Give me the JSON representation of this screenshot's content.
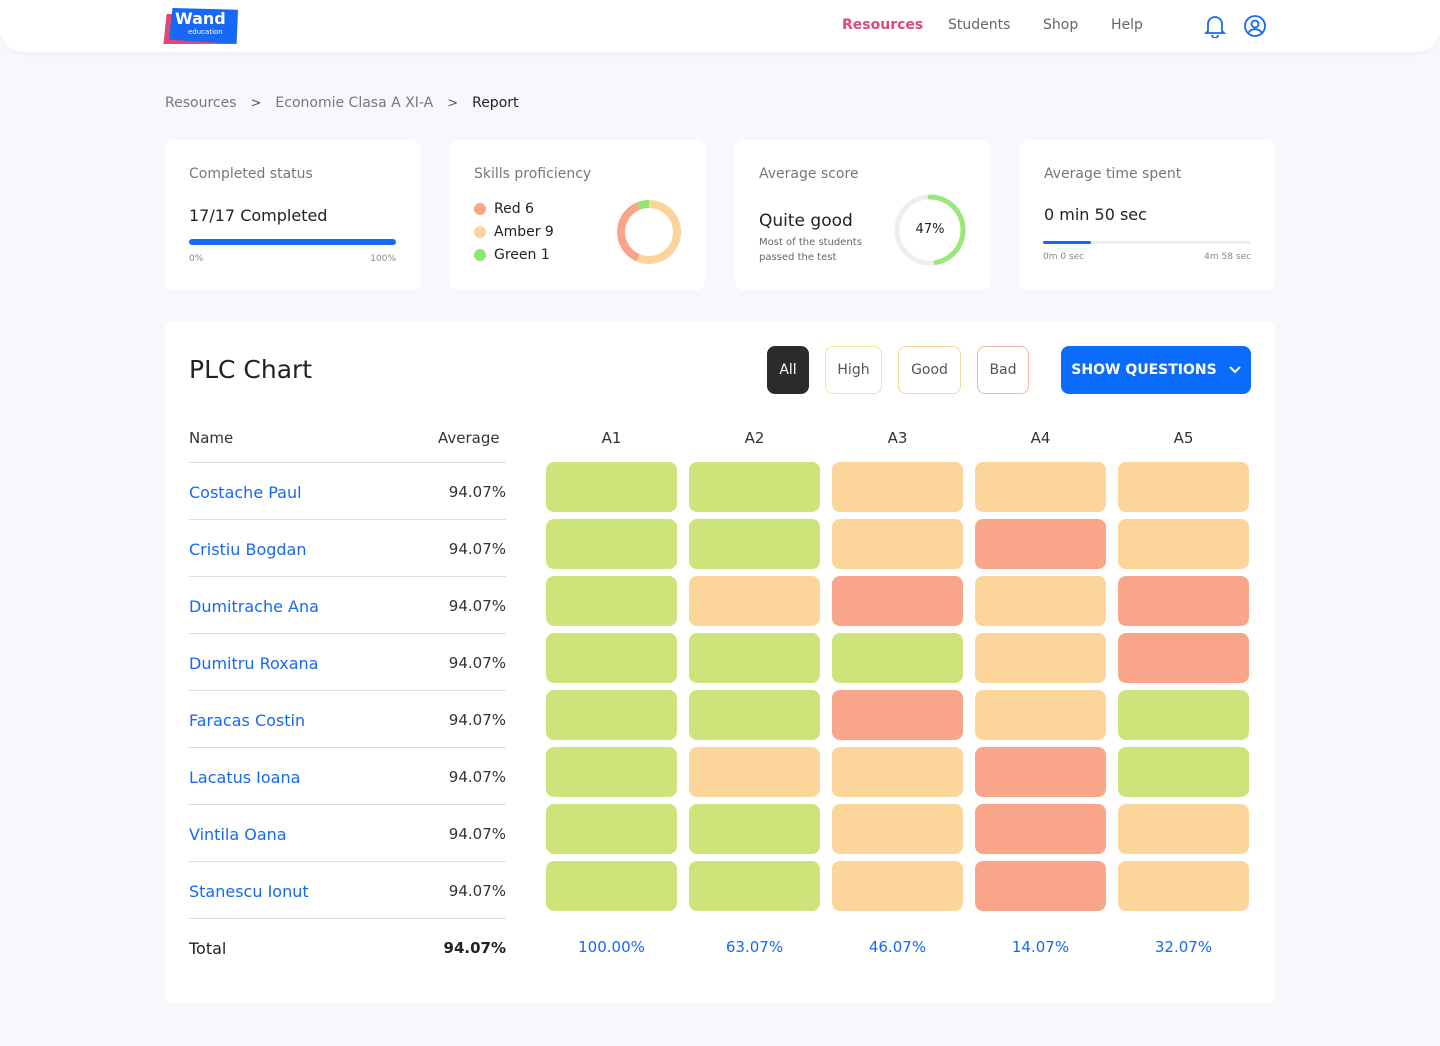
{
  "header": {
    "logo_text": "Wand",
    "logo_sub": "education",
    "nav": [
      "Resources",
      "Students",
      "Shop",
      "Help"
    ],
    "active_nav": "Resources",
    "accent": "#e0487a"
  },
  "breadcrumb": [
    "Resources",
    "Economie Clasa A XI-A",
    "Report"
  ],
  "cards": {
    "completed": {
      "title": "Completed status",
      "value": "17/17 Completed",
      "progress": 1.0,
      "min": "0%",
      "max": "100%"
    },
    "skills": {
      "title": "Skills proficiency",
      "items": [
        {
          "label": "Red 6",
          "count": 6,
          "color": "#f9a58a"
        },
        {
          "label": "Amber 9",
          "count": 9,
          "color": "#fbd49a"
        },
        {
          "label": "Green 1",
          "count": 1,
          "color": "#94e56e"
        }
      ]
    },
    "score": {
      "title": "Average score",
      "value": "Quite good",
      "desc1": "Most of the students",
      "desc2": "passed the test",
      "percent_label": "47%",
      "percent": 47
    },
    "time": {
      "title": "Average time spent",
      "value": "0 min 50 sec",
      "progress": 0.23,
      "min": "0m 0 sec",
      "max": "4m 58 sec"
    }
  },
  "plc": {
    "title": "PLC Chart",
    "filters": [
      "All",
      "High",
      "Good",
      "Bad"
    ],
    "show_questions": "SHOW QUESTIONS",
    "col_name": "Name",
    "col_avg": "Average",
    "questions": [
      "A1",
      "A2",
      "A3",
      "A4",
      "A5"
    ],
    "colors": {
      "G": "#cde47a",
      "A": "#fbd59a",
      "R": "#f9a58a"
    },
    "rows": [
      {
        "name": "Costache Paul",
        "avg": "94.07%",
        "cells": [
          "G",
          "G",
          "A",
          "A",
          "A"
        ]
      },
      {
        "name": "Cristiu Bogdan",
        "avg": "94.07%",
        "cells": [
          "G",
          "G",
          "A",
          "R",
          "A"
        ]
      },
      {
        "name": "Dumitrache Ana",
        "avg": "94.07%",
        "cells": [
          "G",
          "A",
          "R",
          "A",
          "R"
        ]
      },
      {
        "name": "Dumitru Roxana",
        "avg": "94.07%",
        "cells": [
          "G",
          "G",
          "G",
          "A",
          "R"
        ]
      },
      {
        "name": "Faracas Costin",
        "avg": "94.07%",
        "cells": [
          "G",
          "G",
          "R",
          "A",
          "G"
        ]
      },
      {
        "name": "Lacatus Ioana",
        "avg": "94.07%",
        "cells": [
          "G",
          "A",
          "A",
          "R",
          "G"
        ]
      },
      {
        "name": "Vintila Oana",
        "avg": "94.07%",
        "cells": [
          "G",
          "G",
          "A",
          "R",
          "A"
        ]
      },
      {
        "name": "Stanescu Ionut",
        "avg": "94.07%",
        "cells": [
          "G",
          "G",
          "A",
          "R",
          "A"
        ]
      }
    ],
    "total_label": "Total",
    "total_avg": "94.07%",
    "totals": [
      "100.00%",
      "63.07%",
      "46.07%",
      "14.07%",
      "32.07%"
    ]
  }
}
